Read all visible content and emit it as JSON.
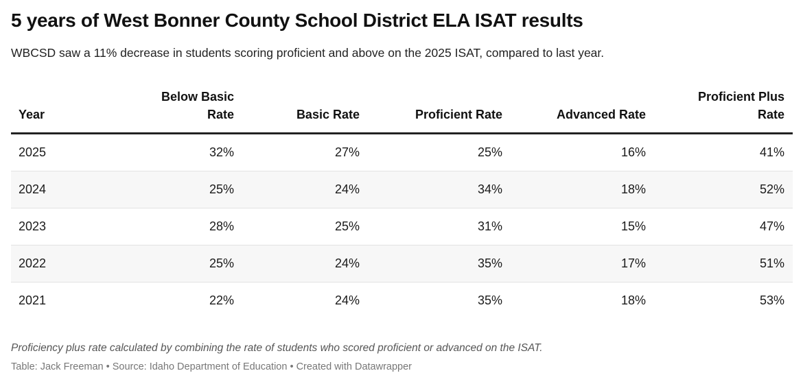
{
  "title": "5 years of West Bonner County School District ELA ISAT results",
  "subtitle": "WBCSD saw a 11% decrease in students scoring proficient and above on the 2025 ISAT, compared to last year.",
  "chart_data": {
    "type": "table",
    "columns": [
      "Year",
      "Below Basic Rate",
      "Basic Rate",
      "Proficient Rate",
      "Advanced Rate",
      "Proficient Plus Rate"
    ],
    "rows": [
      [
        "2025",
        "32%",
        "27%",
        "25%",
        "16%",
        "41%"
      ],
      [
        "2024",
        "25%",
        "24%",
        "34%",
        "18%",
        "52%"
      ],
      [
        "2023",
        "28%",
        "25%",
        "31%",
        "15%",
        "47%"
      ],
      [
        "2022",
        "25%",
        "24%",
        "35%",
        "17%",
        "51%"
      ],
      [
        "2021",
        "22%",
        "24%",
        "35%",
        "18%",
        "53%"
      ]
    ]
  },
  "notes": "Proficiency plus rate calculated by combining the rate of students who scored proficient or advanced on the ISAT.",
  "byline": "Table: Jack Freeman • Source: Idaho Department of Education • Created with Datawrapper"
}
